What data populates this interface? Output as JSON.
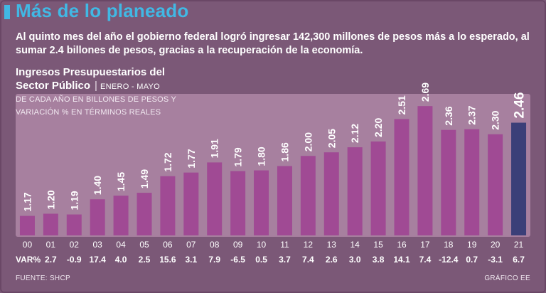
{
  "headline": "Más de lo planeado",
  "intro": "Al quinto mes del año el gobierno federal logró ingresar 142,300 millones de pesos más a lo esperado, al sumar 2.4 billones de pesos, gracias a la recuperación de la economía.",
  "chart": {
    "title_line1": "Ingresos Presupuestarios del",
    "title_line2": "Sector Público",
    "separator": "|",
    "period": "ENERO - MAYO",
    "subtitle_line1": "DE CADA AÑO EN BILLONES DE PESOS Y",
    "subtitle_line2": "VARIACIÓN % EN TÉRMINOS REALES"
  },
  "var_label": "VAR%",
  "source": "FUENTE: SHCP",
  "credit": "GRÁFICO EE",
  "colors": {
    "background": "#7b5877",
    "panel": "#a7809f",
    "bar": "#a04a94",
    "highlight_bar": "#3b3f78",
    "headline": "#41b8e4"
  },
  "chart_data": {
    "type": "bar",
    "title": "Ingresos Presupuestarios del Sector Público",
    "subtitle": "ENERO - MAYO · DE CADA AÑO EN BILLONES DE PESOS Y VARIACIÓN % EN TÉRMINOS REALES",
    "categories": [
      "00",
      "01",
      "02",
      "03",
      "04",
      "05",
      "06",
      "07",
      "08",
      "09",
      "10",
      "11",
      "12",
      "13",
      "14",
      "15",
      "16",
      "17",
      "18",
      "19",
      "20",
      "21"
    ],
    "values": [
      1.17,
      1.2,
      1.19,
      1.4,
      1.45,
      1.49,
      1.72,
      1.77,
      1.91,
      1.79,
      1.8,
      1.86,
      2.0,
      2.05,
      2.12,
      2.2,
      2.51,
      2.69,
      2.36,
      2.37,
      2.3,
      2.46
    ],
    "value_labels": [
      "1.17",
      "1.20",
      "1.19",
      "1.40",
      "1.45",
      "1.49",
      "1.72",
      "1.77",
      "1.91",
      "1.79",
      "1.80",
      "1.86",
      "2.00",
      "2.05",
      "2.12",
      "2.20",
      "2.51",
      "2.69",
      "2.36",
      "2.37",
      "2.30",
      "2.46"
    ],
    "var_pct": [
      "",
      "2.7",
      "-0.9",
      "17.4",
      "4.0",
      "2.5",
      "15.6",
      "3.1",
      "7.9",
      "-6.5",
      "0.5",
      "3.7",
      "7.4",
      "2.6",
      "3.0",
      "3.8",
      "14.1",
      "7.4",
      "-12.4",
      "0.7",
      "-3.1",
      "6.7"
    ],
    "highlight_index": 21,
    "xlabel": "",
    "ylabel": "Billones de pesos",
    "ylim": [
      0.9,
      2.8
    ],
    "grid": false,
    "legend": "none"
  }
}
